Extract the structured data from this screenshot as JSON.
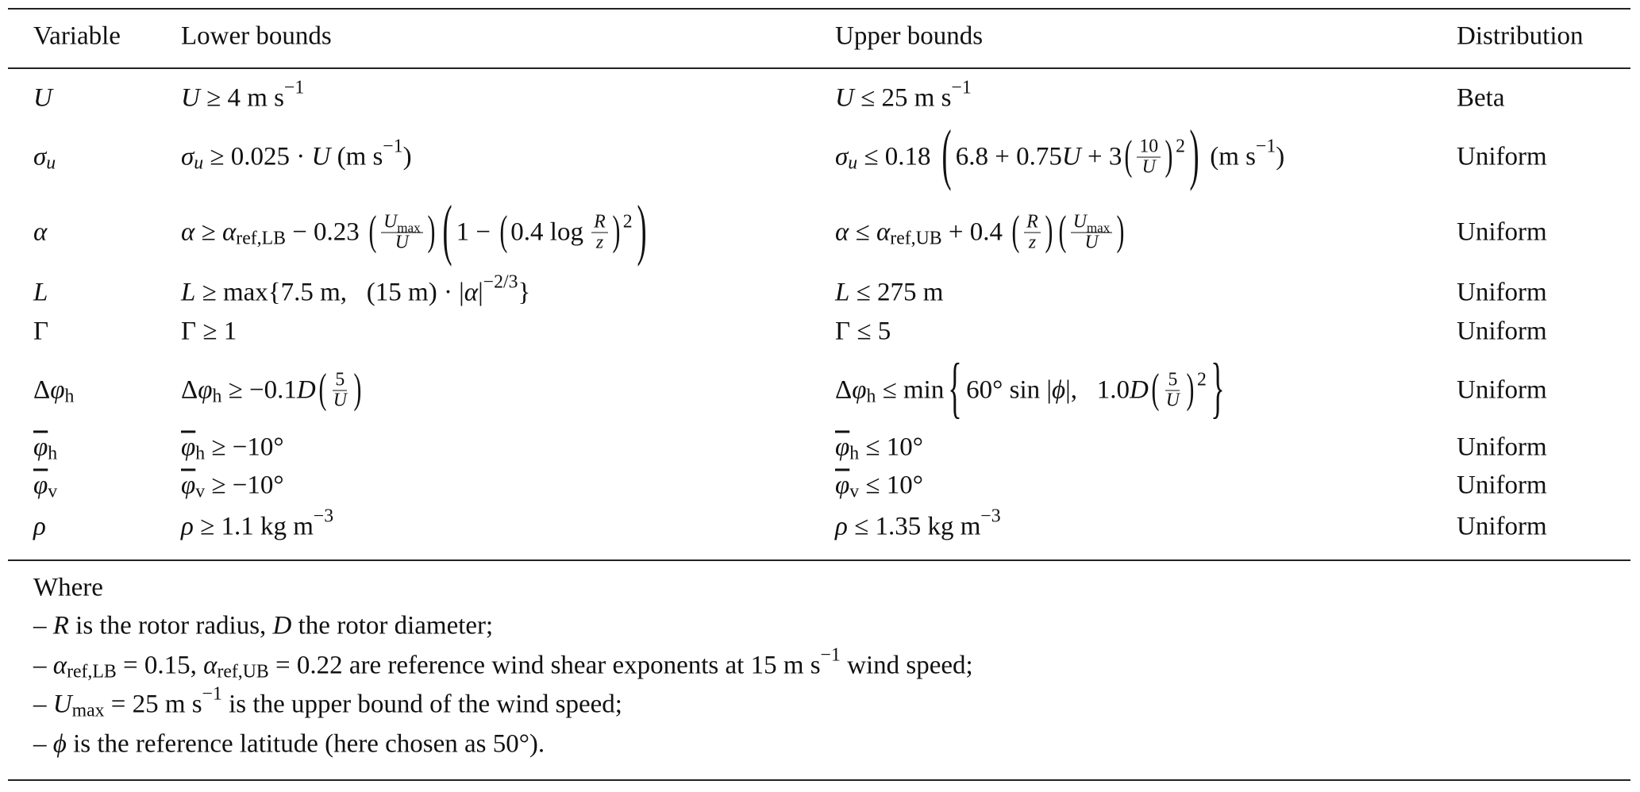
{
  "header": {
    "variable": "Variable",
    "lower": "Lower bounds",
    "upper": "Upper bounds",
    "distribution": "Distribution"
  },
  "rows": [
    {
      "var": [
        [
          "i",
          "U"
        ]
      ],
      "lower": [
        [
          "i",
          "U"
        ],
        [
          "t",
          " ≥ 4 m s"
        ],
        [
          "sup",
          "−1"
        ]
      ],
      "upper": [
        [
          "i",
          "U"
        ],
        [
          "t",
          " ≤ 25 m s"
        ],
        [
          "sup",
          "−1"
        ]
      ],
      "dist": "Beta"
    },
    {
      "var": [
        [
          "i",
          "σ"
        ],
        [
          "isub",
          "u"
        ]
      ],
      "lower": [
        [
          "i",
          "σ"
        ],
        [
          "isub",
          "u"
        ],
        [
          "t",
          " ≥ 0.025 · "
        ],
        [
          "i",
          "U"
        ],
        [
          "t",
          " (m s"
        ],
        [
          "sup",
          "−1"
        ],
        [
          "t",
          ")"
        ]
      ],
      "upper": [
        [
          "i",
          "σ"
        ],
        [
          "isub",
          "u"
        ],
        [
          "t",
          " ≤ 0.18 "
        ],
        [
          "paren",
          "xl",
          "(",
          ")",
          [
            [
              "t",
              "6.8 + 0.75"
            ],
            [
              "i",
              "U"
            ],
            [
              "t",
              " + 3"
            ],
            [
              "paren",
              "lg",
              "(",
              ")",
              [
                [
                  "frac",
                  [
                    [
                      "t",
                      "10"
                    ]
                  ],
                  [
                    [
                      "i",
                      "U"
                    ]
                  ]
                ]
              ]
            ],
            [
              "sup",
              "2"
            ]
          ]
        ],
        [
          "t",
          " (m s"
        ],
        [
          "sup",
          "−1"
        ],
        [
          "t",
          ")"
        ]
      ],
      "dist": "Uniform"
    },
    {
      "var": [
        [
          "i",
          "α"
        ]
      ],
      "lower": [
        [
          "i",
          "α"
        ],
        [
          "t",
          " ≥ "
        ],
        [
          "i",
          "α"
        ],
        [
          "sub",
          "ref,LB"
        ],
        [
          "t",
          " − 0.23 "
        ],
        [
          "paren",
          "lg",
          "(",
          ")",
          [
            [
              "frac",
              [
                [
                  "i",
                  "U"
                ],
                [
                  "sub",
                  "max"
                ]
              ],
              [
                [
                  "i",
                  "U"
                ]
              ]
            ]
          ]
        ],
        [
          "paren",
          "xl",
          "(",
          ")",
          [
            [
              "t",
              "1 − "
            ],
            [
              "paren",
              "lg",
              "(",
              ")",
              [
                [
                  "t",
                  "0.4 log "
                ],
                [
                  "frac",
                  [
                    [
                      "i",
                      "R"
                    ]
                  ],
                  [
                    [
                      "i",
                      "z"
                    ]
                  ]
                ]
              ]
            ],
            [
              "sup",
              "2"
            ]
          ]
        ]
      ],
      "upper": [
        [
          "i",
          "α"
        ],
        [
          "t",
          " ≤ "
        ],
        [
          "i",
          "α"
        ],
        [
          "sub",
          "ref,UB"
        ],
        [
          "t",
          " + 0.4 "
        ],
        [
          "paren",
          "lg",
          "(",
          ")",
          [
            [
              "frac",
              [
                [
                  "i",
                  "R"
                ]
              ],
              [
                [
                  "i",
                  "z"
                ]
              ]
            ]
          ]
        ],
        [
          "paren",
          "lg",
          "(",
          ")",
          [
            [
              "frac",
              [
                [
                  "i",
                  "U"
                ],
                [
                  "sub",
                  "max"
                ]
              ],
              [
                [
                  "i",
                  "U"
                ]
              ]
            ]
          ]
        ]
      ],
      "dist": "Uniform"
    },
    {
      "var": [
        [
          "i",
          "L"
        ]
      ],
      "lower": [
        [
          "i",
          "L"
        ],
        [
          "t",
          " ≥ max{7.5 m,   (15 m) · |"
        ],
        [
          "i",
          "α"
        ],
        [
          "t",
          "|"
        ],
        [
          "sup",
          "−2/3"
        ],
        [
          "t",
          "}"
        ]
      ],
      "upper": [
        [
          "i",
          "L"
        ],
        [
          "t",
          " ≤ 275 m"
        ]
      ],
      "dist": "Uniform"
    },
    {
      "var": [
        [
          "t",
          "Γ"
        ]
      ],
      "lower": [
        [
          "t",
          "Γ ≥ 1"
        ]
      ],
      "upper": [
        [
          "t",
          "Γ ≤ 5"
        ]
      ],
      "dist": "Uniform"
    },
    {
      "var": [
        [
          "t",
          "Δ"
        ],
        [
          "i",
          "φ"
        ],
        [
          "sub",
          "h"
        ]
      ],
      "lower": [
        [
          "t",
          "Δ"
        ],
        [
          "i",
          "φ"
        ],
        [
          "sub",
          "h"
        ],
        [
          "t",
          " ≥ −0.1"
        ],
        [
          "i",
          "D"
        ],
        [
          "paren",
          "lg",
          "(",
          ")",
          [
            [
              "frac",
              [
                [
                  "t",
                  "5"
                ]
              ],
              [
                [
                  "i",
                  "U"
                ]
              ]
            ]
          ]
        ]
      ],
      "upper": [
        [
          "t",
          "Δ"
        ],
        [
          "i",
          "φ"
        ],
        [
          "sub",
          "h"
        ],
        [
          "t",
          " ≤ min"
        ],
        [
          "paren",
          "xl",
          "{",
          "}",
          [
            [
              "t",
              "60° sin |"
            ],
            [
              "i",
              "ϕ"
            ],
            [
              "t",
              "|,   1.0"
            ],
            [
              "i",
              "D"
            ],
            [
              "paren",
              "lg",
              "(",
              ")",
              [
                [
                  "frac",
                  [
                    [
                      "t",
                      "5"
                    ]
                  ],
                  [
                    [
                      "i",
                      "U"
                    ]
                  ]
                ]
              ]
            ],
            [
              "sup",
              "2"
            ]
          ]
        ]
      ],
      "dist": "Uniform"
    },
    {
      "var": [
        [
          "ol",
          "φ"
        ],
        [
          "sub",
          "h"
        ]
      ],
      "lower": [
        [
          "ol",
          "φ"
        ],
        [
          "sub",
          "h"
        ],
        [
          "t",
          " ≥ −10°"
        ]
      ],
      "upper": [
        [
          "ol",
          "φ"
        ],
        [
          "sub",
          "h"
        ],
        [
          "t",
          " ≤ 10°"
        ]
      ],
      "dist": "Uniform"
    },
    {
      "var": [
        [
          "ol",
          "φ"
        ],
        [
          "sub",
          "v"
        ]
      ],
      "lower": [
        [
          "ol",
          "φ"
        ],
        [
          "sub",
          "v"
        ],
        [
          "t",
          " ≥ −10°"
        ]
      ],
      "upper": [
        [
          "ol",
          "φ"
        ],
        [
          "sub",
          "v"
        ],
        [
          "t",
          " ≤ 10°"
        ]
      ],
      "dist": "Uniform"
    },
    {
      "var": [
        [
          "i",
          "ρ"
        ]
      ],
      "lower": [
        [
          "i",
          "ρ"
        ],
        [
          "t",
          " ≥ 1.1 kg m"
        ],
        [
          "sup",
          "−3"
        ]
      ],
      "upper": [
        [
          "i",
          "ρ"
        ],
        [
          "t",
          " ≤ 1.35 kg m"
        ],
        [
          "sup",
          "−3"
        ]
      ],
      "dist": "Uniform"
    }
  ],
  "notes": [
    [
      [
        "t",
        "Where"
      ]
    ],
    [
      [
        "t",
        "– "
      ],
      [
        "i",
        "R"
      ],
      [
        "t",
        " is the rotor radius, "
      ],
      [
        "i",
        "D"
      ],
      [
        "t",
        " the rotor diameter;"
      ]
    ],
    [
      [
        "t",
        "– "
      ],
      [
        "i",
        "α"
      ],
      [
        "sub",
        "ref,LB"
      ],
      [
        "t",
        " = 0.15, "
      ],
      [
        "i",
        "α"
      ],
      [
        "sub",
        "ref,UB"
      ],
      [
        "t",
        " = 0.22 are reference wind shear exponents at 15 m s"
      ],
      [
        "sup",
        "−1"
      ],
      [
        "t",
        " wind speed;"
      ]
    ],
    [
      [
        "t",
        "– "
      ],
      [
        "i",
        "U"
      ],
      [
        "sub",
        "max"
      ],
      [
        "t",
        " = 25 m s"
      ],
      [
        "sup",
        "−1"
      ],
      [
        "t",
        " is the upper bound of the wind speed;"
      ]
    ],
    [
      [
        "t",
        "– "
      ],
      [
        "i",
        "ϕ"
      ],
      [
        "t",
        " is the reference latitude (here chosen as 50°)."
      ]
    ]
  ]
}
